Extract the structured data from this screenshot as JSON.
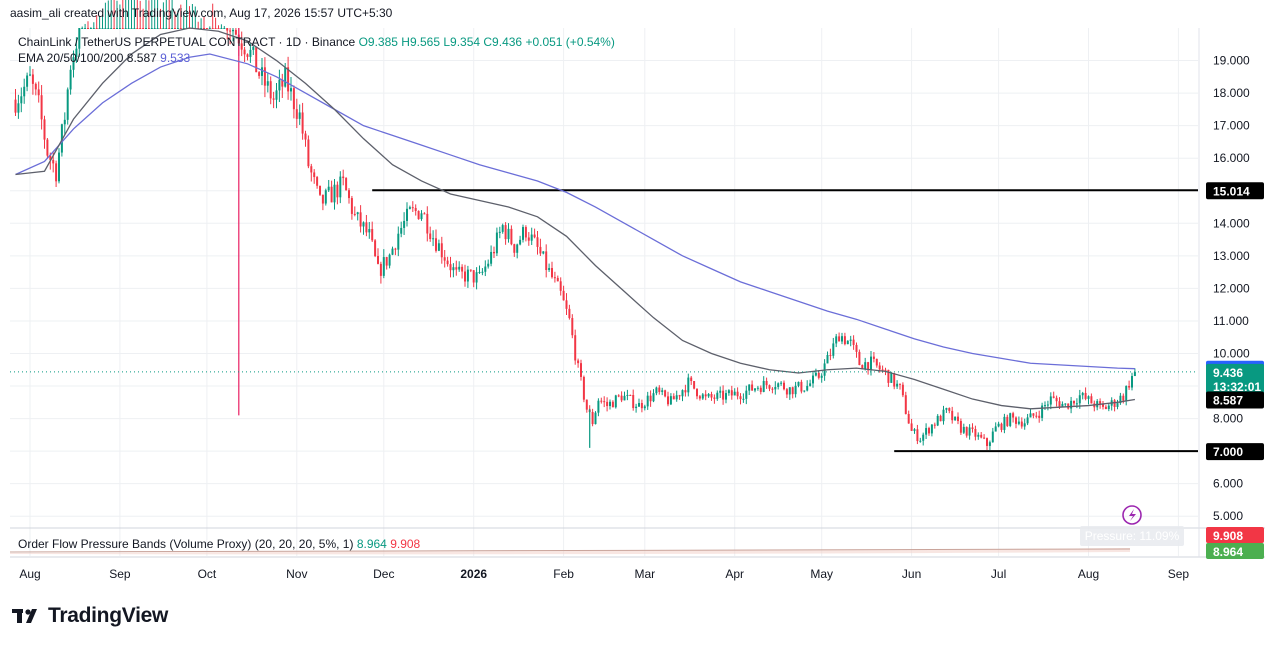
{
  "header": {
    "attribution": "aasim_ali created with TradingView.com, Aug 17, 2026 15:57 UTC+5:30"
  },
  "symbol_legend": {
    "symbol": "ChainLink / TetherUS PERPETUAL CONTRACT · 1D · Binance",
    "open": "O9.385",
    "high": "H9.565",
    "low": "L9.354",
    "close": "C9.436",
    "change": "+0.051 (+0.54%)"
  },
  "ema_legend": {
    "label": "EMA 20/50/100/200",
    "value_50": "8.587",
    "value_200": "9.533"
  },
  "indicator_legend": {
    "label": "Order Flow Pressure Bands (Volume Proxy) (20, 20, 20, 5%, 1)",
    "value_a": "8.964",
    "value_b": "9.908"
  },
  "indicator_badge": "Pressure: 11.09%",
  "price_axis": {
    "last_price": "9.436",
    "countdown": "13:32:01",
    "ema200_label": "9.533",
    "ema50_label": "8.587",
    "resistance_label": "15.014",
    "support_label": "7.000",
    "band_upper_label": "9.908",
    "band_lower_label": "8.964"
  },
  "footer": {
    "brand": "TradingView"
  },
  "colors": {
    "up": "#089981",
    "down": "#f23645",
    "ema200": "#6b6ed8",
    "ema50": "#5d606b",
    "grid": "#eef0f3",
    "level_line": "#000000"
  },
  "chart_data": {
    "type": "candlestick",
    "y_axis": {
      "min": 4.7,
      "max": 20.0,
      "ticks": [
        "5.000",
        "6.000",
        "7.000",
        "8.000",
        "9.000",
        "10.000",
        "11.000",
        "12.000",
        "13.000",
        "14.000",
        "15.000",
        "16.000",
        "17.000",
        "18.000",
        "19.000"
      ]
    },
    "x_axis": {
      "labels": [
        "Aug",
        "Sep",
        "Oct",
        "Nov",
        "Dec",
        "2026",
        "Feb",
        "Mar",
        "Apr",
        "May",
        "Jun",
        "Jul",
        "Aug",
        "Sep"
      ],
      "label_days": [
        0,
        31,
        61,
        92,
        122,
        153,
        184,
        212,
        243,
        273,
        304,
        334,
        365,
        396
      ]
    },
    "horizontal_levels": [
      {
        "value": 15.014,
        "from_day": 118,
        "to_day": 415
      },
      {
        "value": 7.0,
        "from_day": 298,
        "to_day": 415
      }
    ],
    "price_path": [
      [
        -5,
        17.8
      ],
      [
        0,
        18.4
      ],
      [
        3,
        17.6
      ],
      [
        6,
        16.2
      ],
      [
        9,
        15.6
      ],
      [
        12,
        17.3
      ],
      [
        14,
        18.9
      ],
      [
        16,
        19.6
      ],
      [
        18,
        20.4
      ],
      [
        30,
        21.5
      ],
      [
        55,
        21.0
      ],
      [
        66,
        20.5
      ],
      [
        75,
        19.4
      ],
      [
        79,
        18.6
      ],
      [
        84,
        17.8
      ],
      [
        88,
        18.4
      ],
      [
        93,
        17.3
      ],
      [
        96,
        15.8
      ],
      [
        100,
        14.6
      ],
      [
        104,
        14.9
      ],
      [
        108,
        15.2
      ],
      [
        112,
        14.2
      ],
      [
        117,
        13.6
      ],
      [
        120,
        12.5
      ],
      [
        124,
        13.0
      ],
      [
        127,
        13.7
      ],
      [
        131,
        14.3
      ],
      [
        135,
        14.4
      ],
      [
        139,
        13.6
      ],
      [
        143,
        13.0
      ],
      [
        147,
        12.4
      ],
      [
        151,
        12.4
      ],
      [
        155,
        12.3
      ],
      [
        159,
        13.0
      ],
      [
        163,
        13.9
      ],
      [
        167,
        13.3
      ],
      [
        171,
        13.8
      ],
      [
        175,
        13.2
      ],
      [
        179,
        12.5
      ],
      [
        183,
        11.8
      ],
      [
        186,
        11.0
      ],
      [
        189,
        9.5
      ],
      [
        192,
        8.3
      ],
      [
        194,
        7.9
      ],
      [
        196,
        8.6
      ],
      [
        199,
        8.4
      ],
      [
        204,
        8.7
      ],
      [
        210,
        8.4
      ],
      [
        216,
        8.8
      ],
      [
        221,
        8.5
      ],
      [
        227,
        9.1
      ],
      [
        233,
        8.6
      ],
      [
        240,
        8.7
      ],
      [
        246,
        8.8
      ],
      [
        251,
        9.0
      ],
      [
        257,
        9.1
      ],
      [
        262,
        8.9
      ],
      [
        268,
        9.0
      ],
      [
        272,
        9.3
      ],
      [
        275,
        9.8
      ],
      [
        279,
        10.6
      ],
      [
        283,
        10.3
      ],
      [
        286,
        9.7
      ],
      [
        290,
        9.7
      ],
      [
        295,
        9.4
      ],
      [
        300,
        8.9
      ],
      [
        304,
        7.6
      ],
      [
        307,
        7.4
      ],
      [
        311,
        7.8
      ],
      [
        316,
        8.2
      ],
      [
        321,
        7.7
      ],
      [
        326,
        7.5
      ],
      [
        330,
        7.2
      ],
      [
        333,
        7.7
      ],
      [
        338,
        8.0
      ],
      [
        343,
        7.9
      ],
      [
        348,
        8.2
      ],
      [
        352,
        8.6
      ],
      [
        357,
        8.4
      ],
      [
        362,
        8.7
      ],
      [
        366,
        8.5
      ],
      [
        370,
        8.3
      ],
      [
        374,
        8.5
      ],
      [
        377,
        8.7
      ],
      [
        379,
        9.1
      ],
      [
        381,
        9.436
      ]
    ],
    "ema50_path": [
      [
        -5,
        15.5
      ],
      [
        5,
        15.6
      ],
      [
        15,
        17.2
      ],
      [
        25,
        18.3
      ],
      [
        35,
        19.2
      ],
      [
        45,
        19.8
      ],
      [
        55,
        20.0
      ],
      [
        65,
        19.9
      ],
      [
        75,
        19.6
      ],
      [
        85,
        19.0
      ],
      [
        95,
        18.3
      ],
      [
        105,
        17.5
      ],
      [
        115,
        16.6
      ],
      [
        125,
        15.8
      ],
      [
        135,
        15.3
      ],
      [
        145,
        14.9
      ],
      [
        155,
        14.7
      ],
      [
        165,
        14.5
      ],
      [
        175,
        14.2
      ],
      [
        185,
        13.6
      ],
      [
        195,
        12.7
      ],
      [
        205,
        11.9
      ],
      [
        215,
        11.1
      ],
      [
        225,
        10.4
      ],
      [
        235,
        10.0
      ],
      [
        245,
        9.7
      ],
      [
        255,
        9.5
      ],
      [
        265,
        9.4
      ],
      [
        275,
        9.5
      ],
      [
        285,
        9.55
      ],
      [
        295,
        9.45
      ],
      [
        305,
        9.2
      ],
      [
        315,
        8.9
      ],
      [
        325,
        8.6
      ],
      [
        335,
        8.4
      ],
      [
        345,
        8.3
      ],
      [
        355,
        8.35
      ],
      [
        365,
        8.4
      ],
      [
        375,
        8.5
      ],
      [
        381,
        8.587
      ]
    ],
    "ema200_path": [
      [
        -5,
        15.5
      ],
      [
        5,
        15.9
      ],
      [
        15,
        16.9
      ],
      [
        25,
        17.7
      ],
      [
        35,
        18.3
      ],
      [
        45,
        18.8
      ],
      [
        55,
        19.1
      ],
      [
        62,
        19.2
      ],
      [
        75,
        18.9
      ],
      [
        85,
        18.5
      ],
      [
        95,
        18.0
      ],
      [
        105,
        17.5
      ],
      [
        115,
        17.0
      ],
      [
        125,
        16.7
      ],
      [
        135,
        16.4
      ],
      [
        145,
        16.1
      ],
      [
        155,
        15.8
      ],
      [
        165,
        15.55
      ],
      [
        175,
        15.3
      ],
      [
        185,
        14.95
      ],
      [
        195,
        14.5
      ],
      [
        205,
        14.0
      ],
      [
        215,
        13.5
      ],
      [
        225,
        13.0
      ],
      [
        235,
        12.6
      ],
      [
        245,
        12.2
      ],
      [
        255,
        11.9
      ],
      [
        265,
        11.6
      ],
      [
        275,
        11.3
      ],
      [
        285,
        11.05
      ],
      [
        295,
        10.75
      ],
      [
        305,
        10.45
      ],
      [
        315,
        10.2
      ],
      [
        325,
        10.0
      ],
      [
        335,
        9.85
      ],
      [
        345,
        9.7
      ],
      [
        355,
        9.65
      ],
      [
        365,
        9.6
      ],
      [
        375,
        9.55
      ],
      [
        381,
        9.533
      ]
    ],
    "spikes": [
      {
        "day": 72,
        "high": 20.3,
        "low": 8.1
      },
      {
        "day": 193,
        "high": 8.3,
        "low": 7.1
      }
    ],
    "indicator": {
      "name": "Order Flow Pressure Bands (Volume Proxy)",
      "values": [
        "8.964",
        "9.908"
      ],
      "pressure": "11.09%"
    }
  }
}
